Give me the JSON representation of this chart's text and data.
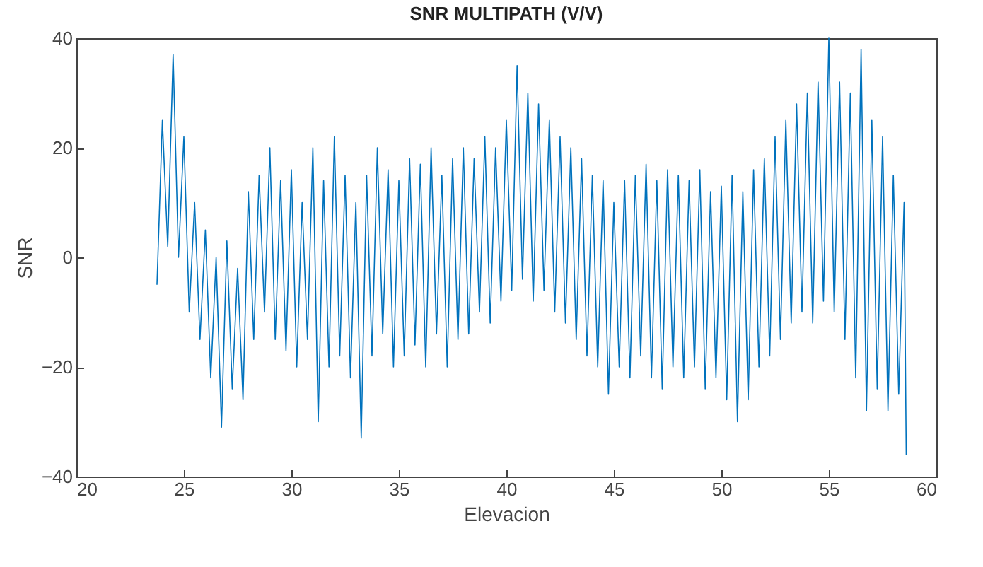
{
  "chart_data": {
    "type": "line",
    "title": "SNR MULTIPATH (V/V)",
    "xlabel": "Elevacion",
    "ylabel": "SNR",
    "x": [
      23.75,
      24.0,
      24.25,
      24.5,
      24.75,
      25.0,
      25.25,
      25.5,
      25.75,
      26.0,
      26.25,
      26.5,
      26.75,
      27.0,
      27.25,
      27.5,
      27.75,
      28.0,
      28.25,
      28.5,
      28.75,
      29.0,
      29.25,
      29.5,
      29.75,
      30.0,
      30.25,
      30.5,
      30.75,
      31.0,
      31.25,
      31.5,
      31.75,
      32.0,
      32.25,
      32.5,
      32.75,
      33.0,
      33.25,
      33.5,
      33.75,
      34.0,
      34.25,
      34.5,
      34.75,
      35.0,
      35.25,
      35.5,
      35.75,
      36.0,
      36.25,
      36.5,
      36.75,
      37.0,
      37.25,
      37.5,
      37.75,
      38.0,
      38.25,
      38.5,
      38.75,
      39.0,
      39.25,
      39.5,
      39.75,
      40.0,
      40.25,
      40.5,
      40.75,
      41.0,
      41.25,
      41.5,
      41.75,
      42.0,
      42.25,
      42.5,
      42.75,
      43.0,
      43.25,
      43.5,
      43.75,
      44.0,
      44.25,
      44.5,
      44.75,
      45.0,
      45.25,
      45.5,
      45.75,
      46.0,
      46.25,
      46.5,
      46.75,
      47.0,
      47.25,
      47.5,
      47.75,
      48.0,
      48.25,
      48.5,
      48.75,
      49.0,
      49.25,
      49.5,
      49.75,
      50.0,
      50.25,
      50.5,
      50.75,
      51.0,
      51.25,
      51.5,
      51.75,
      52.0,
      52.25,
      52.5,
      52.75,
      53.0,
      53.25,
      53.5,
      53.75,
      54.0,
      54.25,
      54.5,
      54.75,
      55.0,
      55.25,
      55.5,
      55.75,
      56.0,
      56.25,
      56.5,
      56.75,
      57.0,
      57.25,
      57.5,
      57.75,
      58.0,
      58.25,
      58.5,
      58.6
    ],
    "series": [
      {
        "color": "#0072bd",
        "values": [
          -5,
          25,
          2,
          37,
          0,
          22,
          -10,
          10,
          -15,
          5,
          -22,
          0,
          -31,
          3,
          -24,
          -2,
          -26,
          12,
          -15,
          15,
          -10,
          20,
          -15,
          14,
          -17,
          16,
          -20,
          10,
          -15,
          20,
          -30,
          14,
          -20,
          22,
          -18,
          15,
          -22,
          10,
          -33,
          15,
          -18,
          20,
          -14,
          16,
          -20,
          14,
          -18,
          18,
          -16,
          17,
          -20,
          20,
          -14,
          15,
          -20,
          18,
          -15,
          20,
          -14,
          18,
          -10,
          22,
          -12,
          20,
          -8,
          25,
          -6,
          35,
          -4,
          30,
          -8,
          28,
          -6,
          25,
          -10,
          22,
          -12,
          20,
          -15,
          18,
          -18,
          15,
          -20,
          14,
          -25,
          10,
          -20,
          14,
          -22,
          15,
          -18,
          17,
          -22,
          14,
          -24,
          16,
          -20,
          15,
          -22,
          14,
          -20,
          16,
          -24,
          12,
          -22,
          13,
          -26,
          15,
          -30,
          12,
          -26,
          16,
          -20,
          18,
          -18,
          22,
          -15,
          25,
          -12,
          28,
          -10,
          30,
          -12,
          32,
          -8,
          40,
          -10,
          32,
          -15,
          30,
          -22,
          38,
          -28,
          25,
          -24,
          22,
          -28,
          15,
          -25,
          10,
          -36
        ]
      }
    ],
    "xlim": [
      20,
      60
    ],
    "xticks": [
      20,
      25,
      30,
      35,
      40,
      45,
      50,
      55,
      60
    ],
    "ylim": [
      -40,
      40
    ],
    "yticks": [
      -40,
      -20,
      0,
      20,
      40
    ]
  }
}
